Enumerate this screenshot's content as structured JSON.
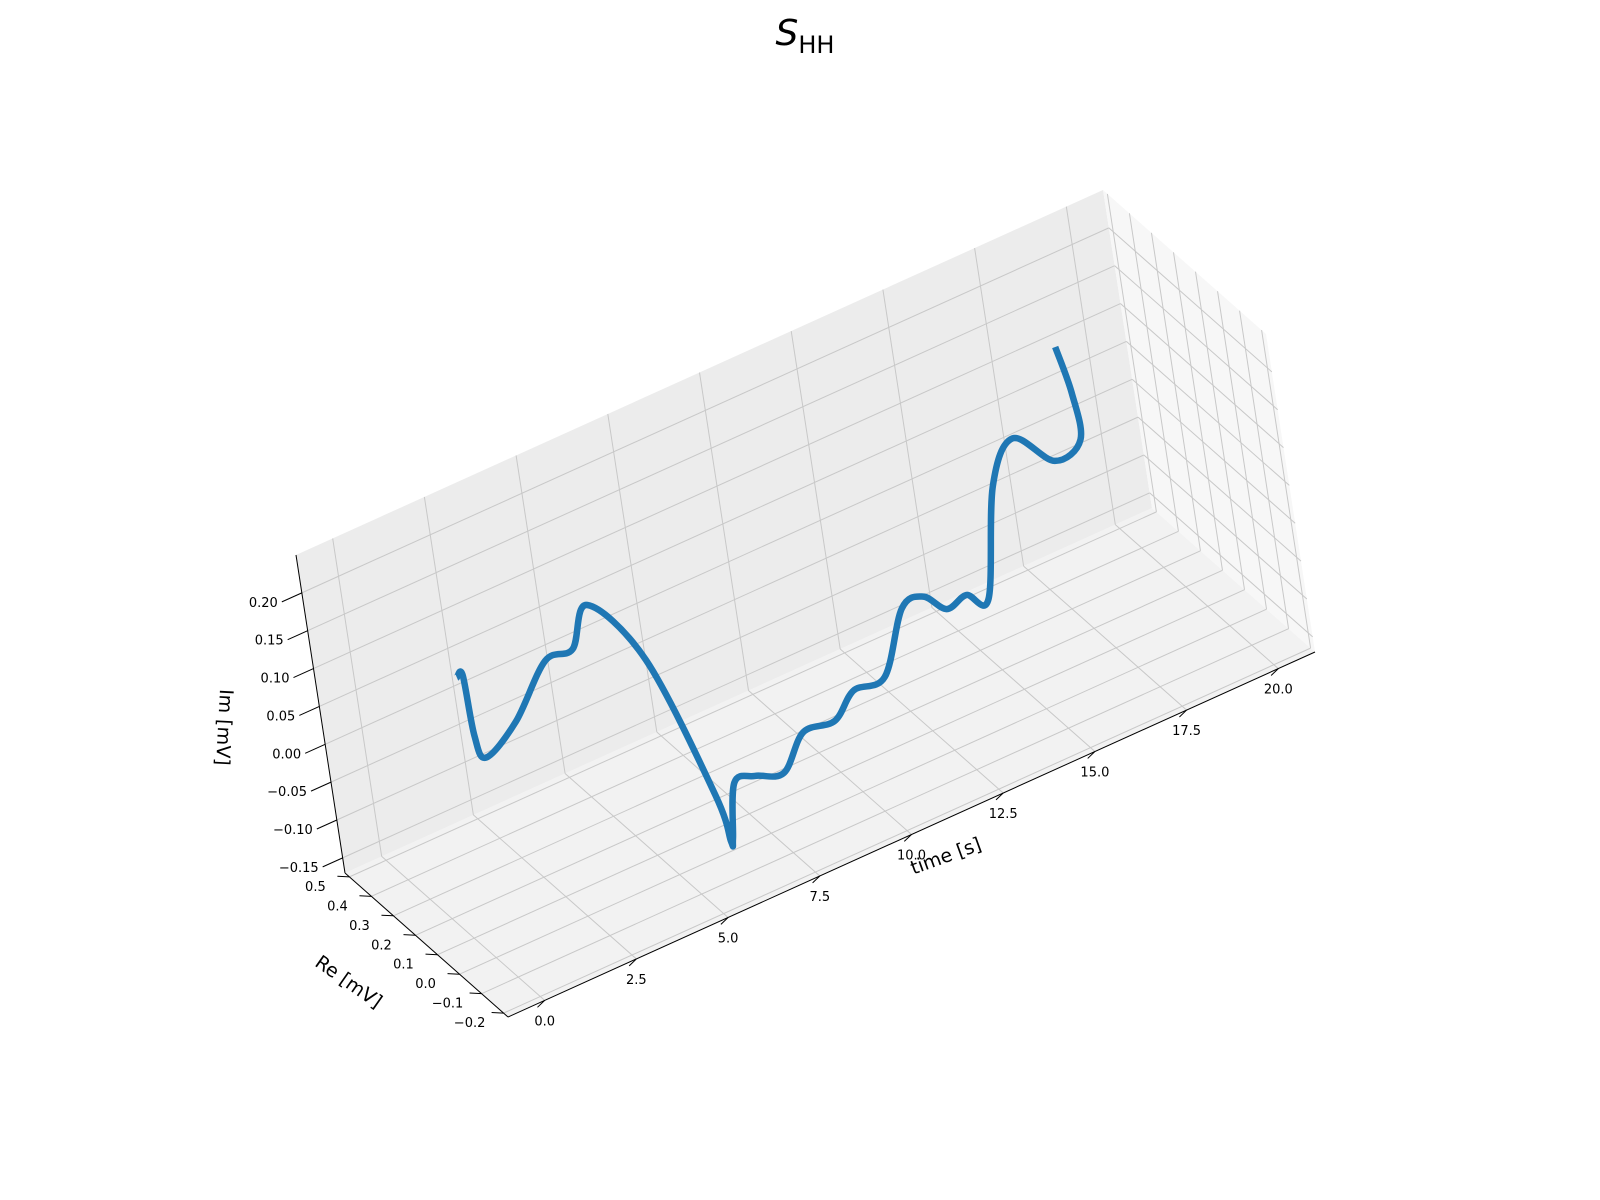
{
  "chart_data": {
    "type": "line",
    "projection": "3d",
    "title": {
      "main": "S",
      "subscript": "HH"
    },
    "x_axis": {
      "label": "time [s]",
      "range": [
        -1.0,
        21.0
      ],
      "ticks": [
        "0.0",
        "2.5",
        "5.0",
        "7.5",
        "10.0",
        "12.5",
        "15.0",
        "17.5",
        "20.0"
      ]
    },
    "y_axis": {
      "label": "Re [mV]",
      "range": [
        -0.22,
        0.52
      ],
      "ticks": [
        "−0.2",
        "−0.1",
        "0.0",
        "0.1",
        "0.2",
        "0.3",
        "0.4",
        "0.5"
      ]
    },
    "z_axis": {
      "label": "Im [mV]",
      "range": [
        -0.17,
        0.25
      ],
      "ticks": [
        "−0.15",
        "−0.10",
        "−0.05",
        "0.00",
        "0.05",
        "0.10",
        "0.15",
        "0.20"
      ]
    },
    "grid": true,
    "series": [
      {
        "color": "#1f77b4",
        "points": [
          {
            "t": 0.0,
            "re": -0.02,
            "im": 0.205
          },
          {
            "t": 0.35,
            "re": 0.02,
            "im": 0.19
          },
          {
            "t": 0.8,
            "re": 0.1,
            "im": 0.08
          },
          {
            "t": 1.5,
            "re": 0.2,
            "im": 0.01
          },
          {
            "t": 2.3,
            "re": 0.18,
            "im": 0.045
          },
          {
            "t": 2.8,
            "re": 0.08,
            "im": 0.14
          },
          {
            "t": 3.4,
            "re": 0.05,
            "im": 0.15
          },
          {
            "t": 3.9,
            "re": 0.04,
            "im": 0.2
          },
          {
            "t": 4.5,
            "re": -0.1,
            "im": 0.15
          },
          {
            "t": 5.4,
            "re": -0.17,
            "im": -0.03
          },
          {
            "t": 6.2,
            "re": -0.05,
            "im": -0.14
          },
          {
            "t": 6.6,
            "re": 0.02,
            "im": -0.162
          },
          {
            "t": 7.0,
            "re": 0.05,
            "im": -0.105
          },
          {
            "t": 7.6,
            "re": 0.06,
            "im": -0.112
          },
          {
            "t": 8.4,
            "re": 0.07,
            "im": -0.128
          },
          {
            "t": 9.0,
            "re": 0.06,
            "im": -0.085
          },
          {
            "t": 9.8,
            "re": 0.05,
            "im": -0.085
          },
          {
            "t": 10.4,
            "re": 0.05,
            "im": -0.058
          },
          {
            "t": 11.2,
            "re": 0.04,
            "im": -0.055
          },
          {
            "t": 11.9,
            "re": 0.04,
            "im": 0.02
          },
          {
            "t": 12.4,
            "re": 0.02,
            "im": 0.03
          },
          {
            "t": 12.9,
            "re": 0.01,
            "im": 0.005
          },
          {
            "t": 13.5,
            "re": 0.02,
            "im": 0.008
          },
          {
            "t": 14.2,
            "re": 0.05,
            "im": -0.02
          },
          {
            "t": 14.7,
            "re": 0.04,
            "im": 0.12
          },
          {
            "t": 15.1,
            "re": -0.02,
            "im": 0.19
          },
          {
            "t": 15.6,
            "re": -0.12,
            "im": 0.175
          },
          {
            "t": 16.1,
            "re": -0.17,
            "im": 0.205
          },
          {
            "t": 16.3,
            "re": -0.12,
            "im": 0.25
          },
          {
            "t": 16.4,
            "re": -0.05,
            "im": 0.29
          }
        ]
      }
    ]
  }
}
